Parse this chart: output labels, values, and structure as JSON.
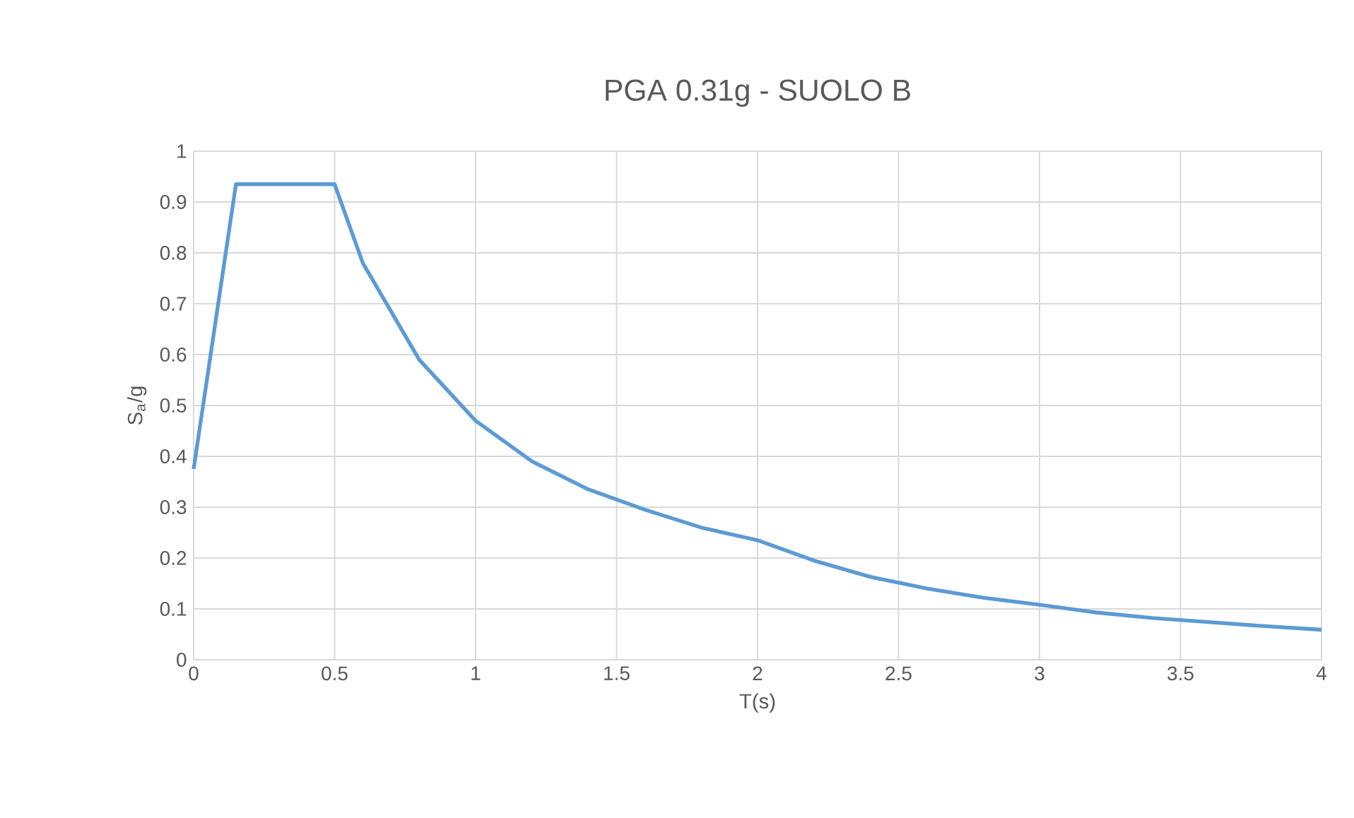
{
  "chart_data": {
    "type": "line",
    "title": "PGA 0.31g - SUOLO B",
    "xlabel": "T(s)",
    "ylabel": "S$_{a}$/g",
    "x": [
      0,
      0.15,
      0.5,
      0.6,
      0.8,
      1.0,
      1.2,
      1.4,
      1.6,
      1.8,
      2.0,
      2.2,
      2.4,
      2.6,
      2.8,
      3.0,
      3.2,
      3.4,
      3.6,
      3.8,
      4.0
    ],
    "series": [
      {
        "color": "#5b9bd5",
        "values": [
          0.375,
          0.935,
          0.935,
          0.78,
          0.59,
          0.47,
          0.39,
          0.335,
          0.295,
          0.26,
          0.235,
          0.195,
          0.163,
          0.14,
          0.122,
          0.108,
          0.093,
          0.082,
          0.074,
          0.066,
          0.059
        ]
      }
    ],
    "xlim": [
      0,
      4
    ],
    "ylim": [
      0,
      1
    ],
    "xticks": [
      0,
      0.5,
      1,
      1.5,
      2,
      2.5,
      3,
      3.5,
      4
    ],
    "yticks": [
      0,
      0.1,
      0.2,
      0.3,
      0.4,
      0.5,
      0.6,
      0.7,
      0.8,
      0.9,
      1
    ],
    "grid": true
  }
}
